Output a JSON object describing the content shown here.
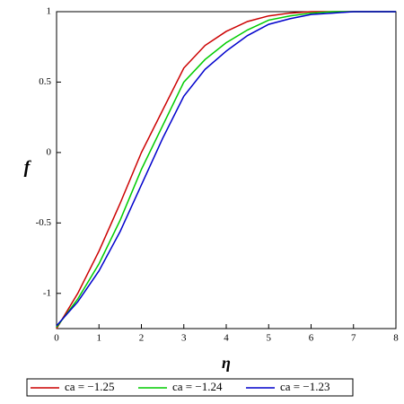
{
  "chart_data": {
    "type": "line",
    "x_label": "η",
    "y_label": "f",
    "x": [
      0,
      0.5,
      1,
      1.5,
      2,
      2.5,
      3,
      3.5,
      4,
      4.5,
      5,
      5.5,
      6,
      6.5,
      7,
      7.5,
      8
    ],
    "series": [
      {
        "name": "ca = −1.25",
        "color": "#cc0000",
        "values": [
          -1.25,
          -1.0,
          -0.7,
          -0.36,
          0.0,
          0.3,
          0.6,
          0.76,
          0.86,
          0.93,
          0.97,
          0.99,
          1.0,
          1,
          1,
          1,
          1
        ]
      },
      {
        "name": "ca = −1.24",
        "color": "#00cc00",
        "values": [
          -1.24,
          -1.04,
          -0.79,
          -0.48,
          -0.12,
          0.19,
          0.5,
          0.66,
          0.78,
          0.87,
          0.94,
          0.97,
          0.99,
          1,
          1,
          1,
          1
        ]
      },
      {
        "name": "ca = −1.23",
        "color": "#0000cc",
        "values": [
          -1.23,
          -1.06,
          -0.84,
          -0.56,
          -0.23,
          0.1,
          0.4,
          0.59,
          0.72,
          0.83,
          0.91,
          0.95,
          0.98,
          0.99,
          1,
          1,
          1
        ]
      }
    ],
    "xlim": [
      0,
      8
    ],
    "xticks": [
      0,
      1,
      2,
      3,
      4,
      5,
      6,
      7,
      8
    ],
    "ylim": [
      -1.25,
      1
    ],
    "yticks": [
      -1,
      -0.5,
      0,
      0.5,
      1
    ],
    "legend": "bottom"
  }
}
